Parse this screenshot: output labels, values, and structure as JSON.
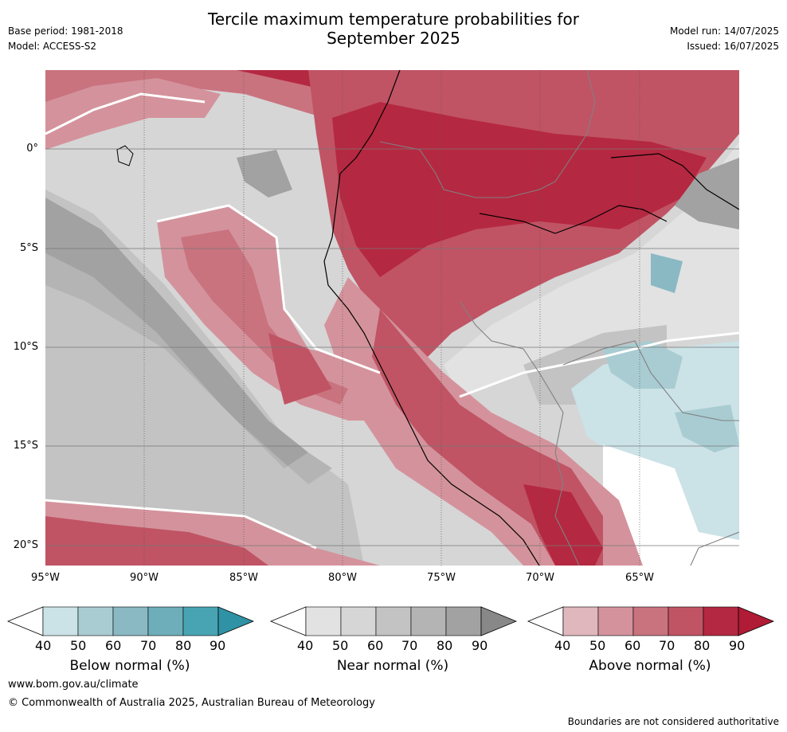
{
  "header": {
    "title_line1": "Tercile maximum temperature probabilities for",
    "title_line2": "September 2025",
    "base_period": "Base period: 1981-2018",
    "model": "Model: ACCESS-S2",
    "model_run": "Model run: 14/07/2025",
    "issued": "Issued: 16/07/2025"
  },
  "map": {
    "lat_labels": [
      "0°",
      "5°S",
      "10°S",
      "15°S",
      "20°S"
    ],
    "lon_labels": [
      "95°W",
      "90°W",
      "85°W",
      "80°W",
      "75°W",
      "70°W",
      "65°W"
    ],
    "colors": {
      "above": [
        "#e0b7bd",
        "#d4939c",
        "#c9737f",
        "#c05464",
        "#b52841"
      ],
      "near": [
        "#e2e2e2",
        "#d6d6d6",
        "#c3c3c3",
        "#b4b4b4",
        "#a2a2a2"
      ],
      "below": [
        "#cbe2e7",
        "#a8ccd2",
        "#8ab9c4",
        "#6eaeba",
        "#48a4b3"
      ]
    }
  },
  "colorbars": [
    {
      "label": "Below normal (%)",
      "ticks": [
        "40",
        "50",
        "60",
        "70",
        "80",
        "90"
      ],
      "colors": [
        "#ffffff",
        "#cbe2e7",
        "#a8ccd2",
        "#8ab9c4",
        "#6eaeba",
        "#48a4b3",
        "#2f92a5"
      ]
    },
    {
      "label": "Near normal (%)",
      "ticks": [
        "40",
        "50",
        "60",
        "70",
        "80",
        "90"
      ],
      "colors": [
        "#ffffff",
        "#e2e2e2",
        "#d6d6d6",
        "#c3c3c3",
        "#b4b4b4",
        "#a2a2a2",
        "#888888"
      ]
    },
    {
      "label": "Above normal (%)",
      "ticks": [
        "40",
        "50",
        "60",
        "70",
        "80",
        "90"
      ],
      "colors": [
        "#ffffff",
        "#e0b7bd",
        "#d4939c",
        "#c9737f",
        "#c05464",
        "#b52841",
        "#b01b36"
      ]
    }
  ],
  "footer": {
    "website": "www.bom.gov.au/climate",
    "copyright": "© Commonwealth of Australia 2025, Australian Bureau of Meteorology",
    "disclaimer": "Boundaries are not considered authoritative"
  }
}
